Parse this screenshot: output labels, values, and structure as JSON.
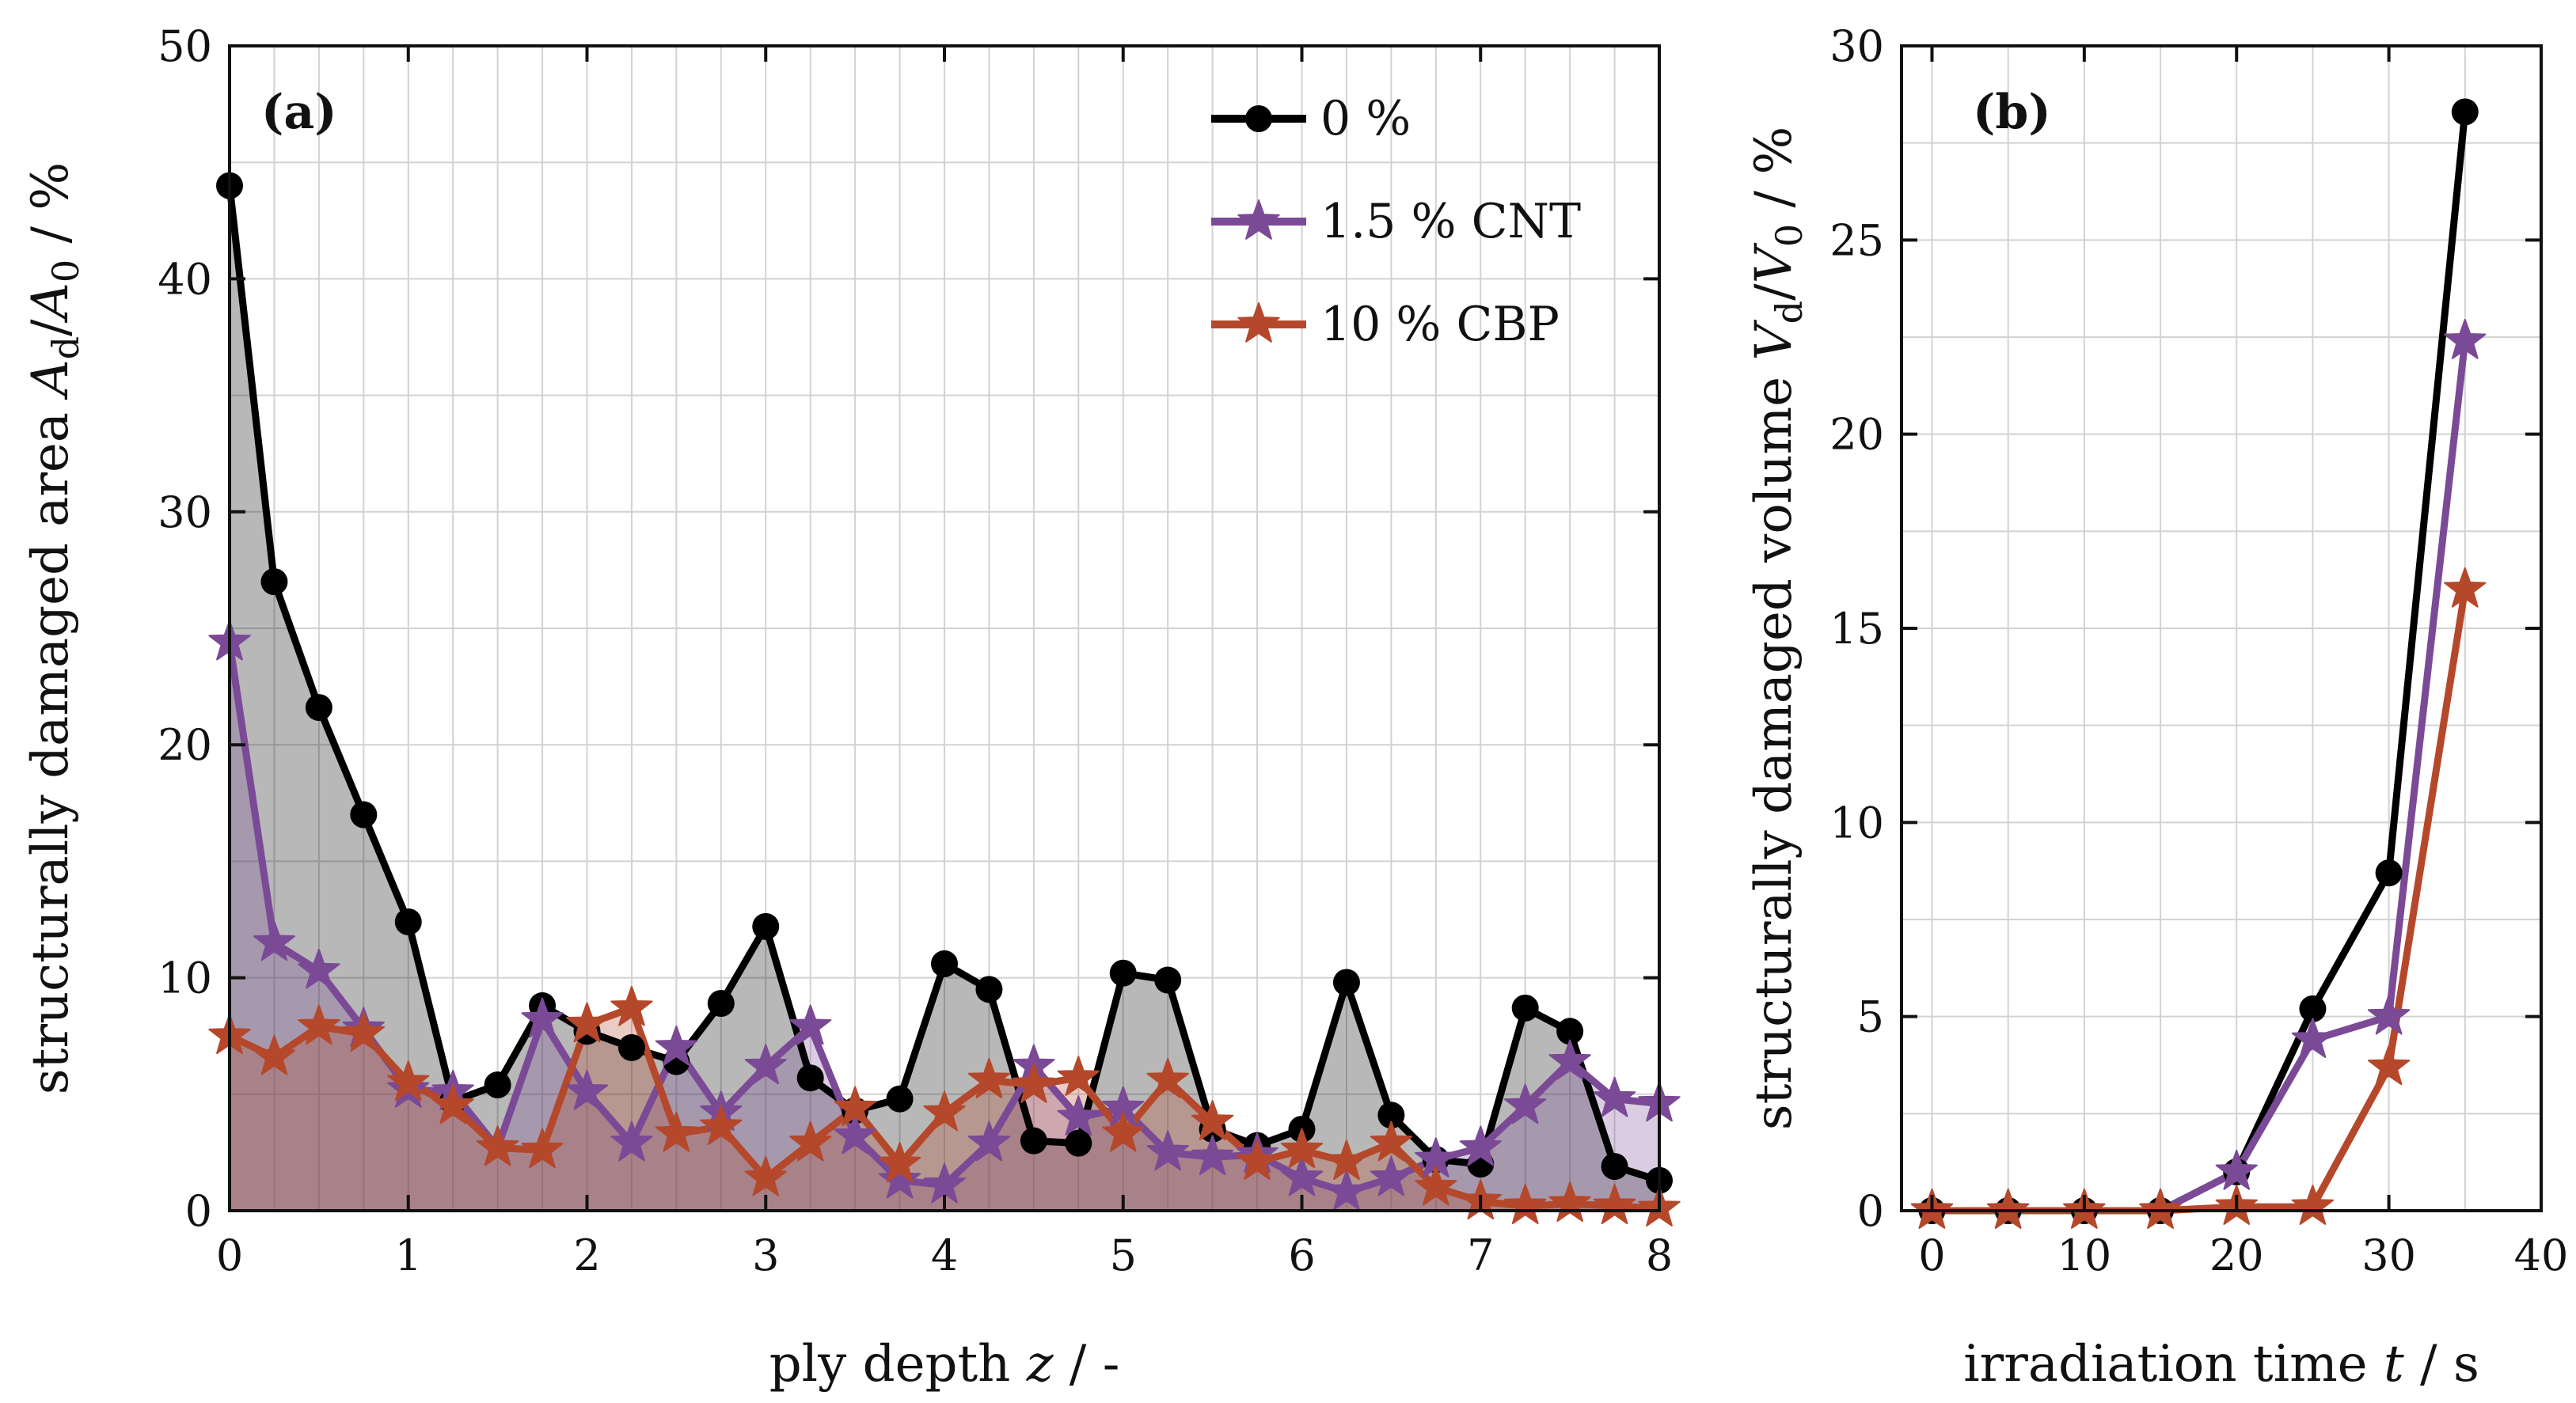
{
  "chart_data": [
    {
      "type": "line",
      "panel_label": "(a)",
      "xlabel": "ply depth",
      "xlabel_var": "z",
      "xlabel_unit": " / -",
      "ylabel": "structurally damaged area",
      "ylabel_var": "A",
      "ylabel_sub": "d",
      "ylabel_slash": "/",
      "ylabel_var2": "A",
      "ylabel_sub2": "0",
      "ylabel_unit": " / %",
      "xlim": [
        0,
        8
      ],
      "ylim": [
        0,
        50
      ],
      "xticks": [
        "0",
        "1",
        "2",
        "3",
        "4",
        "5",
        "6",
        "7",
        "8"
      ],
      "yticks": [
        "0",
        "10",
        "20",
        "30",
        "40",
        "50"
      ],
      "grid": true,
      "legend_position": "top-right",
      "x": [
        0,
        0.25,
        0.5,
        0.75,
        1,
        1.25,
        1.5,
        1.75,
        2,
        2.25,
        2.5,
        2.75,
        3,
        3.25,
        3.5,
        3.75,
        4,
        4.25,
        4.5,
        4.75,
        5,
        5.25,
        5.5,
        5.75,
        6,
        6.25,
        6.5,
        6.75,
        7,
        7.25,
        7.5,
        7.75,
        8
      ],
      "series": [
        {
          "name": "0 %",
          "color": "#000000",
          "marker": "circle",
          "values": [
            44,
            27,
            21.6,
            17,
            12.4,
            4.7,
            5.4,
            8.8,
            7.7,
            7,
            6.4,
            8.9,
            12.2,
            5.7,
            4.3,
            4.8,
            10.6,
            9.5,
            3,
            2.9,
            10.2,
            9.9,
            3.5,
            2.8,
            3.5,
            9.8,
            4.1,
            2.2,
            2,
            8.7,
            7.7,
            1.9,
            1.3
          ]
        },
        {
          "name": "1.5 % CNT",
          "color": "#7b4a96",
          "marker": "star",
          "values": [
            24.4,
            11.5,
            10.3,
            7.8,
            5.2,
            5.1,
            2.7,
            8.2,
            5.1,
            2.9,
            7,
            4.2,
            6.2,
            7.9,
            3.2,
            1.3,
            1.1,
            2.9,
            6.2,
            4,
            4.4,
            2.5,
            2.3,
            2.4,
            1.4,
            0.8,
            1.4,
            2.2,
            2.7,
            4.5,
            6.4,
            4.8,
            4.6
          ]
        },
        {
          "name": "10 % CBP",
          "color": "#b5482b",
          "marker": "star",
          "values": [
            7.5,
            6.6,
            7.9,
            7.6,
            5.5,
            4.5,
            2.7,
            2.6,
            8,
            8.7,
            3.3,
            3.6,
            1.4,
            2.9,
            4.4,
            2,
            4.2,
            5.6,
            5.4,
            5.7,
            3.3,
            5.6,
            3.8,
            2.1,
            2.6,
            2.1,
            2.9,
            1,
            0.4,
            0.2,
            0.3,
            0.2,
            0.1
          ]
        }
      ]
    },
    {
      "type": "line",
      "panel_label": "(b)",
      "xlabel": "irradiation time",
      "xlabel_var": "t",
      "xlabel_unit": " / s",
      "ylabel": "structurally damaged volume",
      "ylabel_var": "V",
      "ylabel_sub": "d",
      "ylabel_slash": "/",
      "ylabel_var2": "V",
      "ylabel_sub2": "0",
      "ylabel_unit": " / %",
      "xlim": [
        -2,
        40
      ],
      "ylim": [
        0,
        30
      ],
      "xticks": [
        "0",
        "10",
        "20",
        "30",
        "40"
      ],
      "yticks": [
        "0",
        "5",
        "10",
        "15",
        "20",
        "25",
        "30"
      ],
      "grid": true,
      "x": [
        0,
        5,
        10,
        15,
        20,
        25,
        30,
        35
      ],
      "series": [
        {
          "name": "0 %",
          "color": "#000000",
          "marker": "circle",
          "values": [
            0,
            0,
            0,
            0,
            1,
            5.2,
            8.7,
            28.3
          ]
        },
        {
          "name": "1.5 % CNT",
          "color": "#7b4a96",
          "marker": "star",
          "values": [
            0,
            0,
            0,
            0,
            1,
            4.4,
            5,
            22.4
          ]
        },
        {
          "name": "10 % CBP",
          "color": "#b5482b",
          "marker": "star",
          "values": [
            0,
            0,
            0,
            0,
            0.1,
            0.1,
            3.7,
            16
          ]
        }
      ]
    }
  ]
}
